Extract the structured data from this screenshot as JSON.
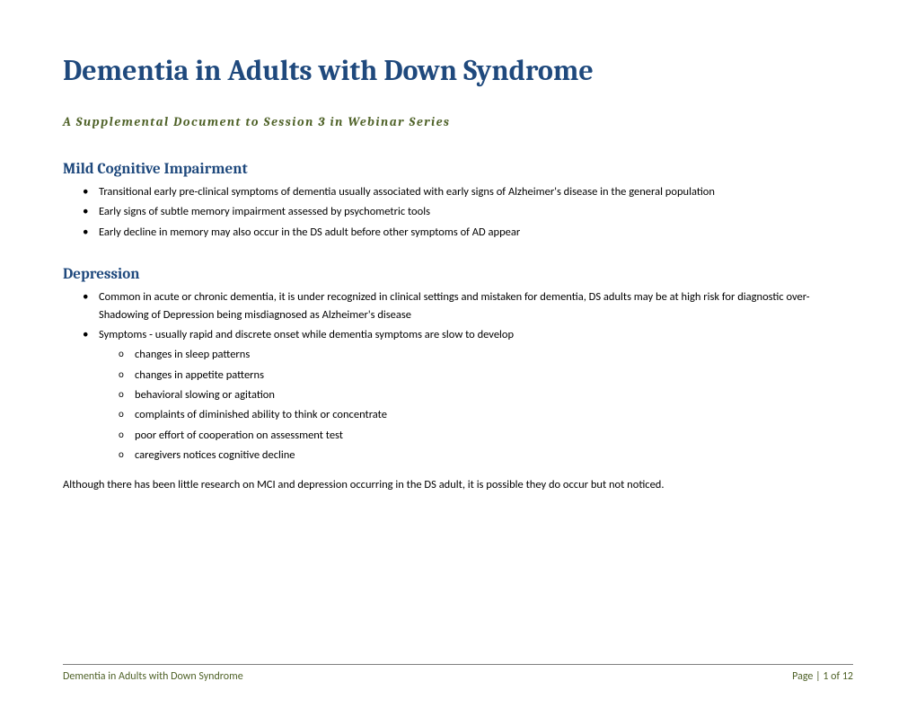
{
  "document": {
    "title": "Dementia in Adults with Down Syndrome",
    "subtitle": "A Supplemental Document to Session 3 in Webinar Series",
    "sections": [
      {
        "heading": "Mild Cognitive Impairment",
        "bullets": [
          "Transitional early pre-clinical symptoms of dementia usually associated with early signs of Alzheimer's disease in the general population",
          "Early signs of subtle memory impairment assessed by psychometric tools",
          "Early decline in memory may also occur in the DS adult before other symptoms of AD appear"
        ]
      },
      {
        "heading": "Depression",
        "bullets": [
          "Common in acute or chronic dementia, it is under recognized in clinical settings and mistaken for dementia, DS adults may be at high risk for diagnostic over-Shadowing of Depression being misdiagnosed as Alzheimer's disease",
          "Symptoms - usually rapid and discrete onset while dementia symptoms are slow to develop"
        ],
        "subBullets": [
          "changes in sleep patterns",
          "changes in appetite patterns",
          "behavioral slowing or agitation",
          "complaints of diminished ability to think or concentrate",
          "poor effort of cooperation on assessment test",
          "caregivers notices cognitive decline"
        ]
      }
    ],
    "closing": "Although there has been little research on MCI and depression occurring in the DS adult, it is possible they do occur but not noticed.",
    "footer": {
      "left": "Dementia in Adults with Down Syndrome",
      "right": "Page | 1 of 12"
    }
  },
  "colors": {
    "titleColor": "#1f497d",
    "subtitleColor": "#4f6228",
    "headingColor": "#1f497d",
    "bodyText": "#000000",
    "footerText": "#4f6228",
    "footerBorder": "#808080",
    "background": "#ffffff"
  }
}
